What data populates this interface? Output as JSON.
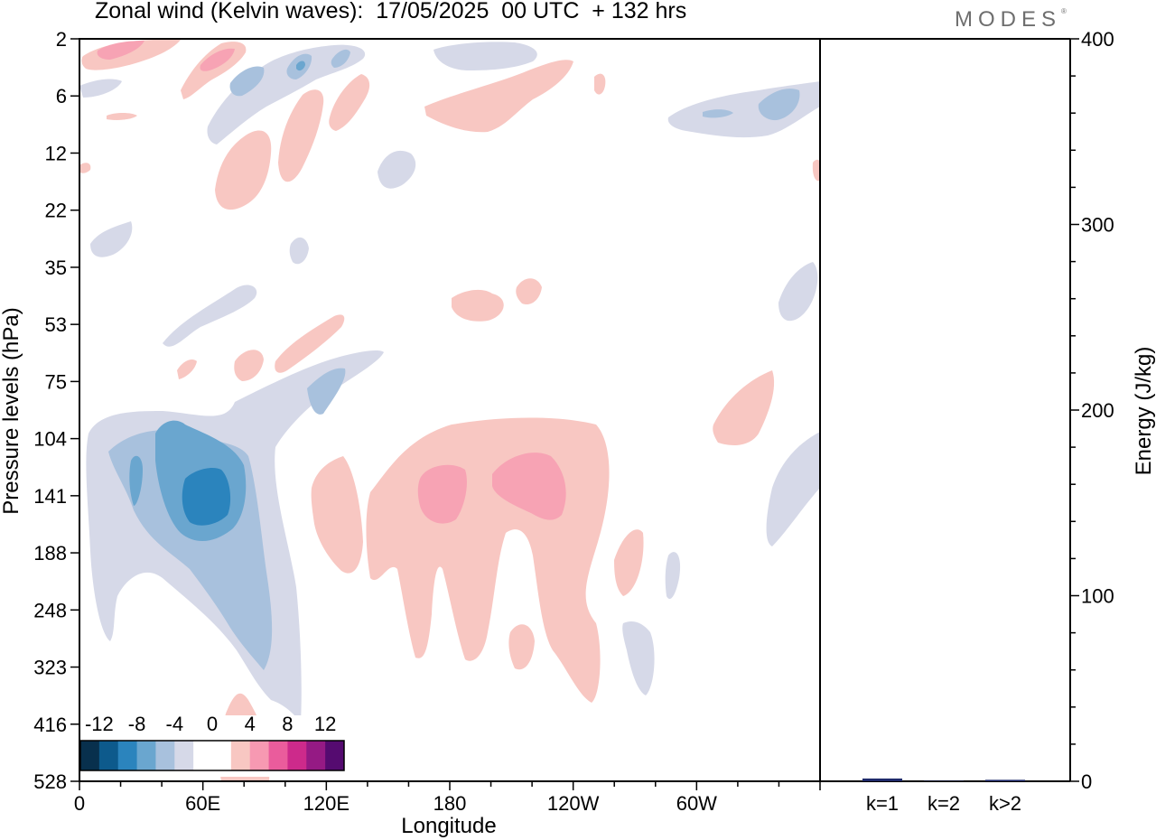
{
  "title": "Zonal wind (Kelvin waves):  17/05/2025  00 UTC  + 132 hrs",
  "brand": "MODES",
  "brand_mark": "®",
  "chart_data": [
    {
      "type": "heatmap",
      "title": "Zonal wind (Kelvin waves):  17/05/2025  00 UTC  + 132 hrs",
      "xlabel": "Longitude",
      "ylabel": "Pressure levels (hPa)",
      "x_ticks": [
        "0",
        "60E",
        "120E",
        "180",
        "120W",
        "60W"
      ],
      "y_ticks": [
        "2",
        "6",
        "12",
        "22",
        "35",
        "53",
        "75",
        "104",
        "141",
        "188",
        "248",
        "323",
        "416",
        "528"
      ],
      "colorbar": {
        "labels": [
          "-12",
          "-8",
          "-4",
          "0",
          "4",
          "8",
          "12"
        ],
        "colors": [
          "#08304d",
          "#0d5a8c",
          "#2b84bd",
          "#6aa6cf",
          "#a8c1dd",
          "#d6d9e8",
          "#ffffff",
          "#ffffff",
          "#f8c7c2",
          "#f799b2",
          "#ea5c9c",
          "#cd2a8b",
          "#951a84",
          "#550b70"
        ]
      },
      "features": [
        {
          "sign": "easterly",
          "peak": -10,
          "lon": 50,
          "level": 141
        },
        {
          "sign": "westerly",
          "peak": 6,
          "lon": 180,
          "level": 141
        },
        {
          "sign": "westerly",
          "peak": 6,
          "lon": 215,
          "level": 141
        },
        {
          "sign": "westerly",
          "peak": 6,
          "lon": 25,
          "level": 2
        }
      ]
    },
    {
      "type": "bar",
      "ylabel": "Energy (J/kg)",
      "categories": [
        "k=1",
        "k=2",
        "k>2"
      ],
      "values": [
        1.5,
        0.2,
        0.8
      ],
      "ylim": [
        0,
        400
      ],
      "y_ticks": [
        "0",
        "100",
        "200",
        "300",
        "400"
      ],
      "color": "#1f2a6b"
    }
  ]
}
